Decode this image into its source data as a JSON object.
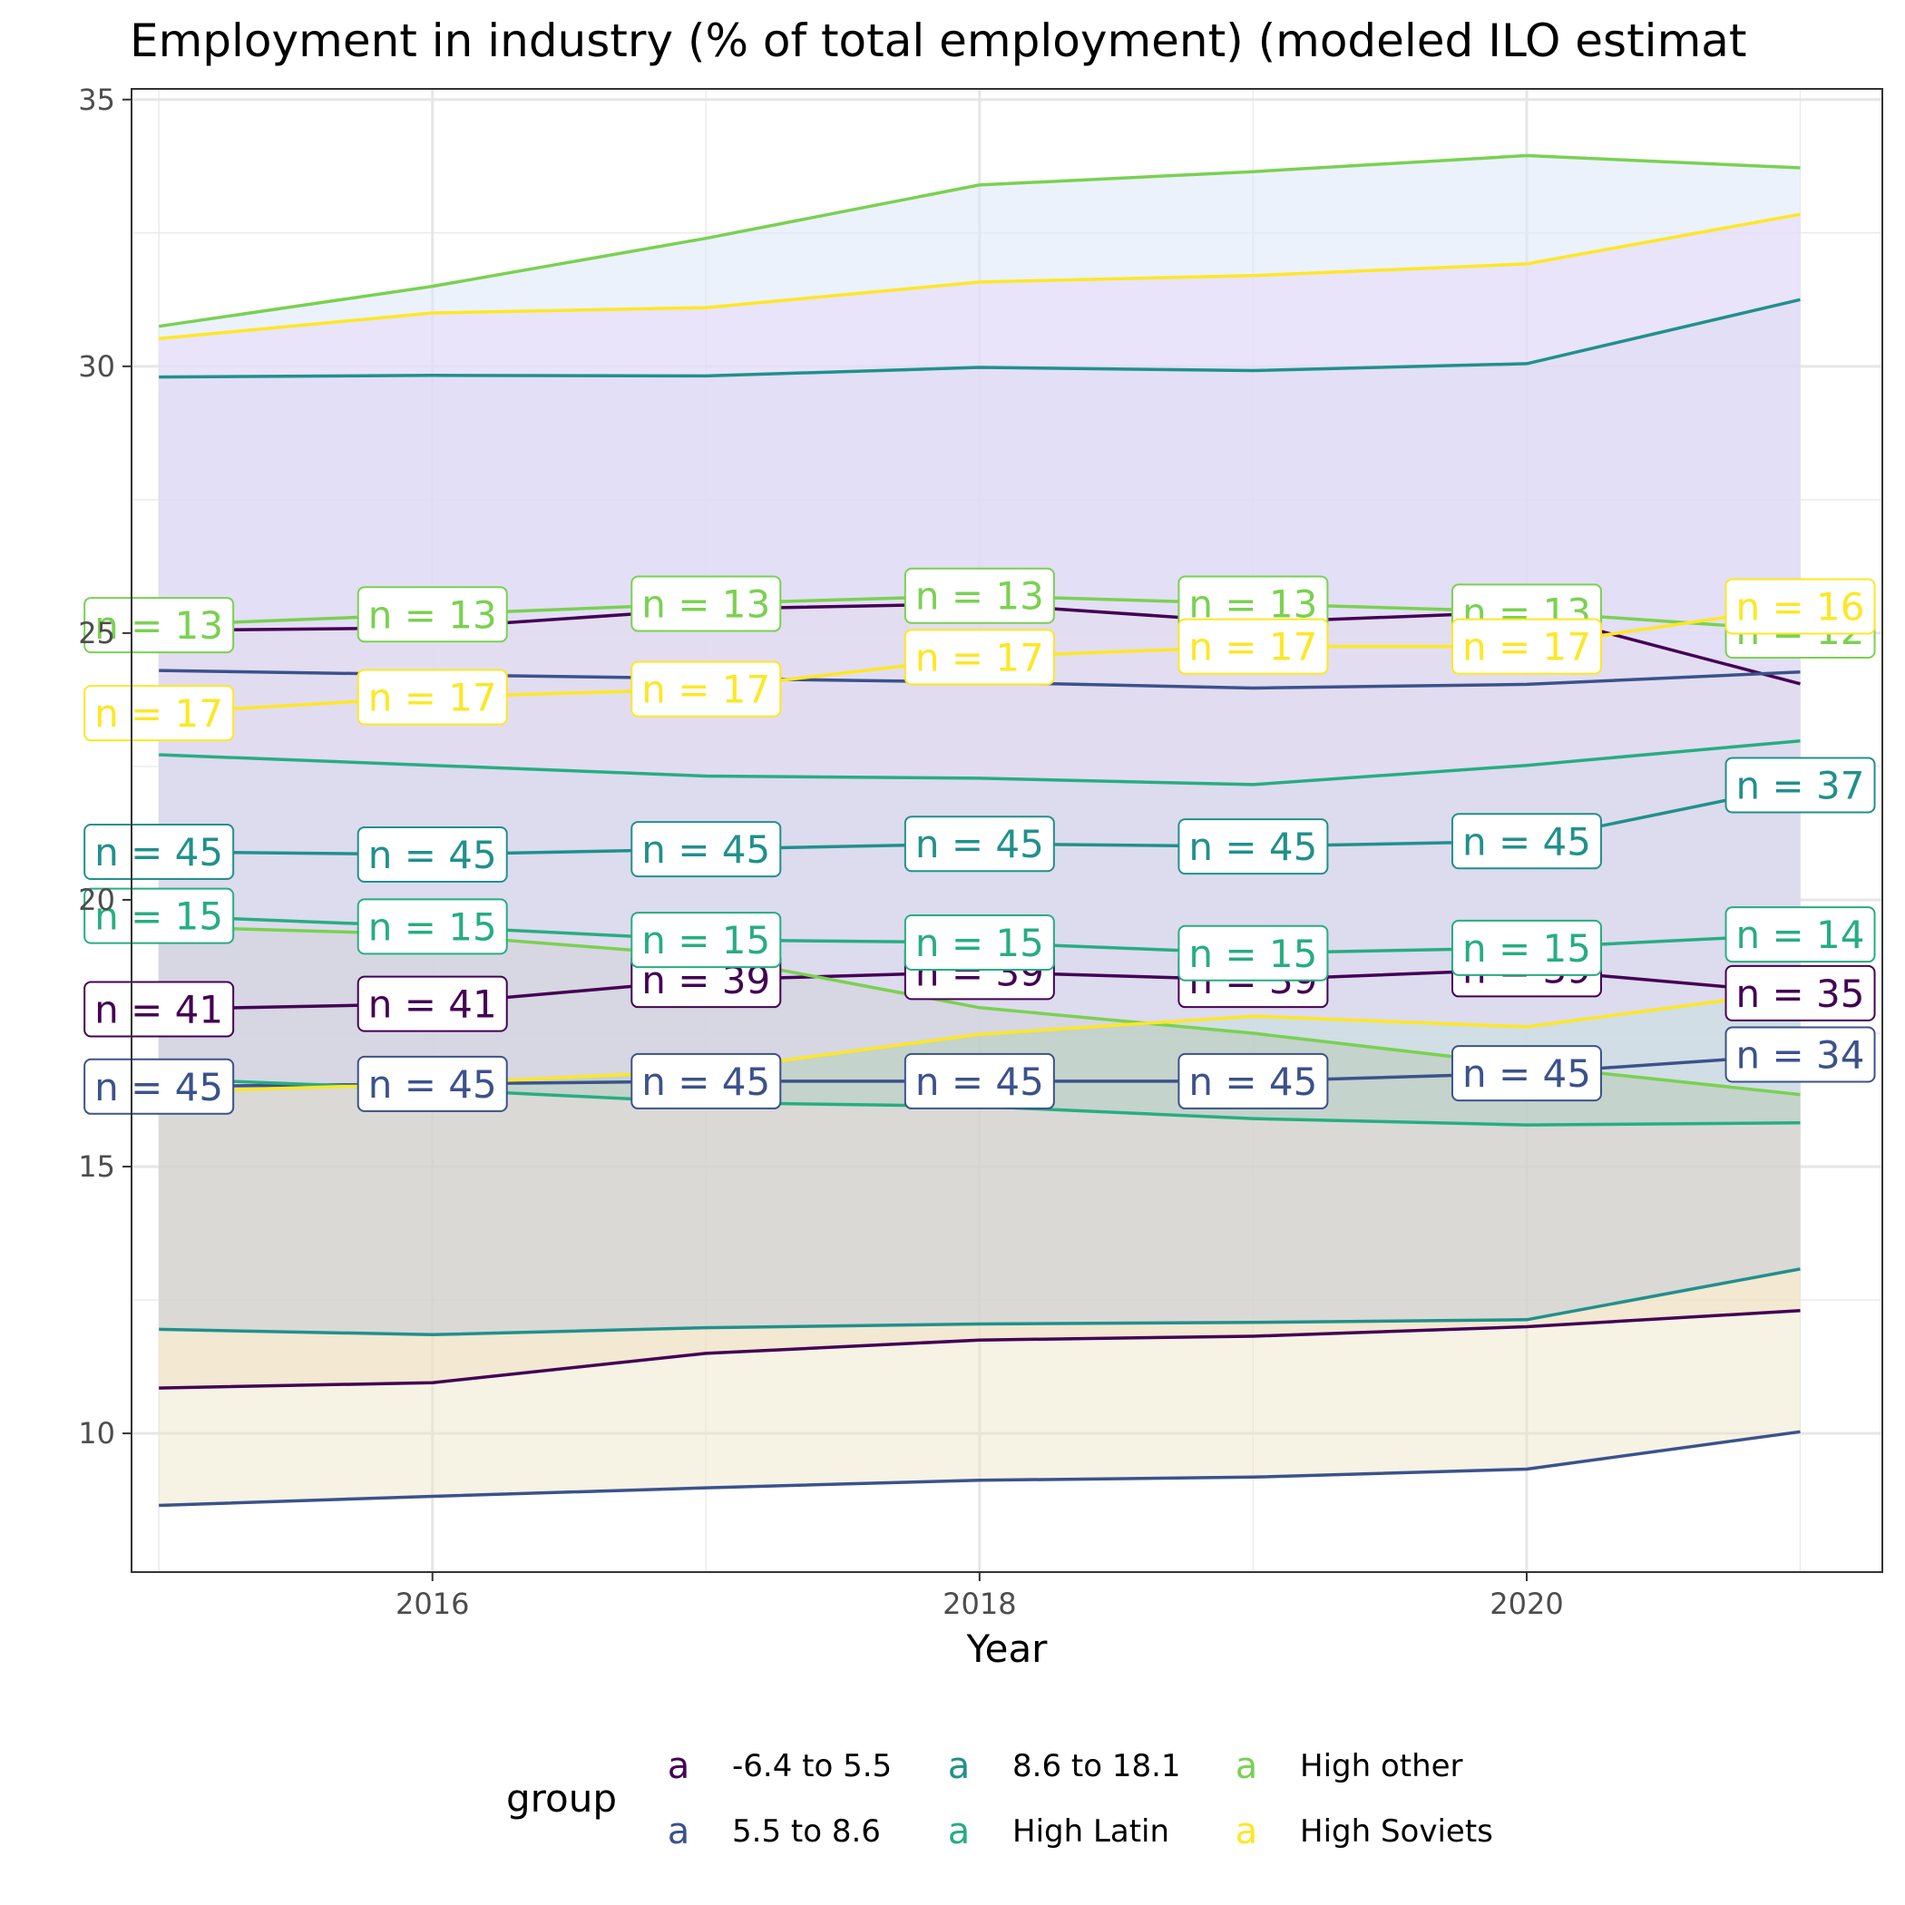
{
  "chart_data": {
    "type": "area",
    "title": "Employment in industry (% of total employment) (modeled ILO estimat",
    "xlabel": "Year",
    "ylabel": "",
    "xlim": [
      2014.9,
      2021.3
    ],
    "ylim": [
      7.4,
      35.2
    ],
    "x_ticks": [
      2016,
      2018,
      2020
    ],
    "y_ticks": [
      10,
      15,
      20,
      25,
      30,
      35
    ],
    "grid": true,
    "legend_position": "bottom",
    "legend_title": "group",
    "x": [
      2015,
      2016,
      2017,
      2018,
      2019,
      2020,
      2021
    ],
    "series": [
      {
        "name": "-6.4 to 5.5",
        "color": "#440154",
        "fill": "#f5ddc5",
        "fill_opacity": 0.6,
        "lower": [
          10.85,
          10.95,
          11.5,
          11.75,
          11.82,
          12.0,
          12.3
        ],
        "mid": [
          17.95,
          18.05,
          18.5,
          18.65,
          18.5,
          18.7,
          18.25
        ],
        "upper": [
          25.05,
          25.1,
          25.45,
          25.55,
          25.2,
          25.4,
          24.05
        ],
        "n": [
          41,
          41,
          39,
          39,
          39,
          39,
          35
        ]
      },
      {
        "name": "5.5 to 8.6",
        "color": "#3b528b",
        "fill": "#ece5c5",
        "fill_opacity": 0.45,
        "lower": [
          8.65,
          8.82,
          8.98,
          9.12,
          9.18,
          9.33,
          10.03
        ],
        "mid": [
          16.5,
          16.55,
          16.6,
          16.6,
          16.6,
          16.75,
          17.1
        ],
        "upper": [
          24.3,
          24.22,
          24.15,
          24.08,
          23.97,
          24.04,
          24.27
        ],
        "n": [
          45,
          45,
          45,
          45,
          45,
          45,
          34
        ]
      },
      {
        "name": "8.6 to 18.1",
        "color": "#21908c",
        "fill": "#b4c3d9",
        "fill_opacity": 0.4,
        "lower": [
          11.95,
          11.85,
          11.98,
          12.05,
          12.08,
          12.13,
          13.08
        ],
        "mid": [
          20.9,
          20.85,
          20.95,
          21.05,
          21.0,
          21.1,
          22.15
        ],
        "upper": [
          29.8,
          29.83,
          29.82,
          29.98,
          29.92,
          30.05,
          31.25
        ],
        "n": [
          45,
          45,
          45,
          45,
          45,
          45,
          37
        ]
      },
      {
        "name": "High Latin",
        "color": "#27ad81",
        "fill": "#a8cdc0",
        "fill_opacity": 0.45,
        "lower": [
          16.65,
          16.45,
          16.2,
          16.13,
          15.9,
          15.78,
          15.82
        ],
        "mid": [
          19.7,
          19.5,
          19.25,
          19.2,
          19.0,
          19.1,
          19.35
        ],
        "upper": [
          22.72,
          22.52,
          22.32,
          22.28,
          22.16,
          22.52,
          22.98
        ],
        "n": [
          15,
          15,
          15,
          15,
          15,
          15,
          14
        ]
      },
      {
        "name": "High other",
        "color": "#7ad151",
        "fill": "#dce8fa",
        "fill_opacity": 0.55,
        "lower": [
          19.5,
          19.35,
          18.95,
          17.98,
          17.5,
          16.9,
          16.35
        ],
        "mid": [
          25.15,
          25.35,
          25.55,
          25.7,
          25.55,
          25.4,
          25.05
        ],
        "upper": [
          30.75,
          31.5,
          32.4,
          33.4,
          33.65,
          33.95,
          33.72
        ],
        "n": [
          13,
          13,
          13,
          13,
          13,
          13,
          12
        ]
      },
      {
        "name": "High Soviets",
        "color": "#fde725",
        "fill": "#e8d8f6",
        "fill_opacity": 0.55,
        "lower": [
          16.4,
          16.55,
          16.8,
          17.48,
          17.82,
          17.62,
          18.3
        ],
        "mid": [
          23.5,
          23.8,
          23.95,
          24.55,
          24.75,
          24.75,
          25.5
        ],
        "upper": [
          30.52,
          31.0,
          31.1,
          31.58,
          31.7,
          31.92,
          32.85
        ],
        "n": [
          17,
          17,
          17,
          17,
          17,
          17,
          16
        ]
      }
    ]
  },
  "legend": {
    "title": "group",
    "key_glyph": "a"
  }
}
